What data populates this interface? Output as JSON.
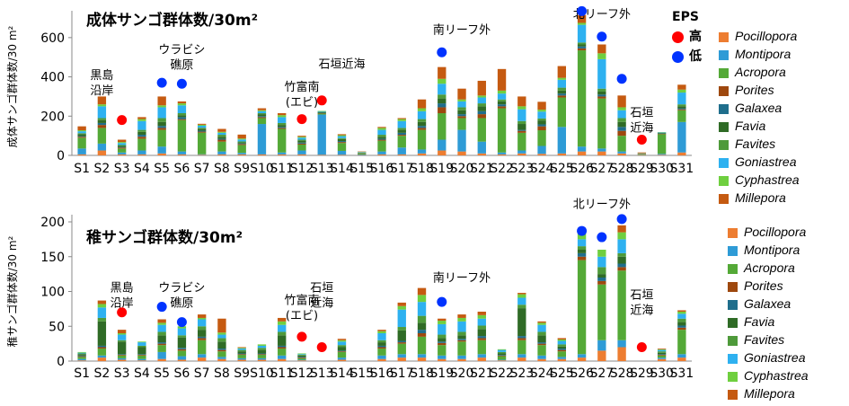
{
  "legend_labels": [
    "Pocillopora",
    "Montipora",
    "Acropora",
    "Porites",
    "Galaxea",
    "Favia",
    "Favites",
    "Goniastrea",
    "Cyphastrea",
    "Millepora"
  ],
  "series_colors": [
    "#ED7D31",
    "#2E9BD6",
    "#54A937",
    "#9E480E",
    "#1F6E8C",
    "#2F6B26",
    "#4E9A3A",
    "#2EB1F0",
    "#6FCF3F",
    "#C55A11"
  ],
  "eps_legend": {
    "title": "EPS",
    "high": "高",
    "low": "低",
    "high_color": "#FF0000",
    "low_color": "#0033FF"
  },
  "chart_data": [
    {
      "type": "bar",
      "title": "成体サンゴ群体数/30m²",
      "ylabel": "成体サンゴ群体数/30 m²",
      "ylim": [
        0,
        700
      ],
      "yticks": [
        0,
        200,
        400,
        600
      ],
      "categories": [
        "S1",
        "S2",
        "S3",
        "S4",
        "S5",
        "S6",
        "S7",
        "S8",
        "S9",
        "S10",
        "S11",
        "S12",
        "S13",
        "S14",
        "S15",
        "S16",
        "S17",
        "S18",
        "S19",
        "S20",
        "S21",
        "S22",
        "S23",
        "S24",
        "S25",
        "S26",
        "S27",
        "S28",
        "S29",
        "S30",
        "S31"
      ],
      "series": [
        {
          "name": "Pocillopora",
          "values": [
            5,
            25,
            5,
            5,
            10,
            5,
            3,
            5,
            5,
            5,
            5,
            5,
            3,
            3,
            2,
            5,
            5,
            10,
            25,
            20,
            10,
            5,
            10,
            8,
            10,
            20,
            20,
            10,
            2,
            3,
            15
          ]
        },
        {
          "name": "Montipora",
          "values": [
            30,
            35,
            10,
            20,
            35,
            15,
            3,
            15,
            8,
            155,
            10,
            20,
            205,
            20,
            3,
            15,
            35,
            20,
            55,
            110,
            60,
            10,
            15,
            40,
            135,
            25,
            15,
            10,
            1,
            5,
            155
          ]
        },
        {
          "name": "Acropora",
          "values": [
            55,
            80,
            20,
            60,
            85,
            160,
            110,
            50,
            40,
            30,
            120,
            30,
            5,
            40,
            5,
            55,
            60,
            100,
            135,
            60,
            120,
            225,
            90,
            80,
            150,
            490,
            255,
            80,
            2,
            100,
            60
          ]
        },
        {
          "name": "Porites",
          "values": [
            5,
            15,
            5,
            10,
            10,
            5,
            5,
            10,
            5,
            5,
            5,
            5,
            2,
            5,
            1,
            5,
            5,
            10,
            30,
            10,
            20,
            10,
            10,
            20,
            10,
            10,
            10,
            25,
            1,
            2,
            5
          ]
        },
        {
          "name": "Galaxea",
          "values": [
            3,
            10,
            3,
            10,
            10,
            10,
            5,
            5,
            3,
            5,
            5,
            5,
            2,
            5,
            1,
            5,
            10,
            10,
            20,
            10,
            15,
            10,
            5,
            10,
            10,
            10,
            10,
            20,
            1,
            2,
            5
          ]
        },
        {
          "name": "Favia",
          "values": [
            10,
            15,
            5,
            15,
            20,
            10,
            10,
            10,
            5,
            10,
            10,
            10,
            3,
            10,
            2,
            10,
            15,
            20,
            25,
            20,
            25,
            15,
            30,
            20,
            15,
            10,
            15,
            25,
            1,
            2,
            10
          ]
        },
        {
          "name": "Favites",
          "values": [
            5,
            10,
            5,
            10,
            20,
            10,
            5,
            10,
            5,
            5,
            10,
            5,
            2,
            5,
            1,
            10,
            10,
            15,
            20,
            15,
            15,
            10,
            15,
            10,
            15,
            10,
            15,
            20,
            1,
            2,
            10
          ]
        },
        {
          "name": "Goniastrea",
          "values": [
            10,
            60,
            10,
            45,
            55,
            40,
            10,
            10,
            10,
            10,
            30,
            10,
            3,
            10,
            2,
            25,
            35,
            40,
            55,
            30,
            30,
            30,
            60,
            35,
            40,
            90,
            150,
            40,
            1,
            2,
            60
          ]
        },
        {
          "name": "Cyphastrea",
          "values": [
            5,
            10,
            5,
            10,
            10,
            10,
            5,
            5,
            5,
            5,
            10,
            5,
            2,
            5,
            1,
            10,
            10,
            15,
            25,
            10,
            10,
            15,
            15,
            10,
            10,
            10,
            30,
            15,
            1,
            1,
            15
          ]
        },
        {
          "name": "Millepora",
          "values": [
            20,
            40,
            12,
            10,
            45,
            10,
            5,
            15,
            20,
            10,
            10,
            5,
            0,
            5,
            2,
            5,
            5,
            45,
            60,
            55,
            75,
            110,
            50,
            40,
            60,
            40,
            45,
            60,
            4,
            0,
            25
          ]
        }
      ],
      "annotations": [
        {
          "text": "黒島\n沿岸",
          "x": "S2",
          "y": 390
        },
        {
          "text": "ウラビシ\n礁原",
          "x": "S6",
          "y": 520
        },
        {
          "text": "竹富南\n(エビ)",
          "x": "S12",
          "y": 330
        },
        {
          "text": "石垣近海",
          "x": "S14",
          "y": 445
        },
        {
          "text": "南リーフ外",
          "x": "S20",
          "y": 620
        },
        {
          "text": "北リーフ外",
          "x": "S27",
          "y": 700
        },
        {
          "text": "石垣\n近海",
          "x": "S29",
          "y": 200
        }
      ],
      "eps_markers": [
        {
          "x": "S3",
          "y": 180,
          "level": "high"
        },
        {
          "x": "S5",
          "y": 370,
          "level": "low"
        },
        {
          "x": "S6",
          "y": 365,
          "level": "low"
        },
        {
          "x": "S12",
          "y": 185,
          "level": "high"
        },
        {
          "x": "S13",
          "y": 280,
          "level": "high"
        },
        {
          "x": "S19",
          "y": 525,
          "level": "low"
        },
        {
          "x": "S26",
          "y": 735,
          "level": "low"
        },
        {
          "x": "S27",
          "y": 605,
          "level": "low"
        },
        {
          "x": "S28",
          "y": 390,
          "level": "low"
        },
        {
          "x": "S29",
          "y": 80,
          "level": "high"
        }
      ]
    },
    {
      "type": "bar",
      "title": "稚サンゴ群体数/30m²",
      "ylabel": "稚サンゴ群体数/30 m²",
      "ylim": [
        0,
        200
      ],
      "yticks": [
        0,
        50,
        100,
        150,
        200
      ],
      "categories": [
        "S1",
        "S2",
        "S3",
        "S4",
        "S5",
        "S6",
        "S7",
        "S8",
        "S9",
        "S10",
        "S11",
        "S12",
        "S13",
        "S14",
        "S15",
        "S16",
        "S17",
        "S18",
        "S19",
        "S20",
        "S21",
        "S22",
        "S23",
        "S24",
        "S25",
        "S26",
        "S27",
        "S28",
        "S29",
        "S30",
        "S31"
      ],
      "series": [
        {
          "name": "Pocillopora",
          "values": [
            1,
            5,
            2,
            1,
            3,
            2,
            5,
            3,
            2,
            2,
            3,
            1,
            0,
            2,
            0,
            3,
            5,
            5,
            3,
            3,
            5,
            1,
            5,
            3,
            3,
            5,
            15,
            20,
            0,
            3,
            5
          ]
        },
        {
          "name": "Montipora",
          "values": [
            2,
            3,
            2,
            2,
            10,
            5,
            5,
            3,
            2,
            2,
            5,
            1,
            0,
            3,
            0,
            5,
            5,
            5,
            5,
            5,
            5,
            1,
            5,
            5,
            3,
            5,
            15,
            10,
            0,
            2,
            5
          ]
        },
        {
          "name": "Acropora",
          "values": [
            3,
            10,
            4,
            5,
            10,
            8,
            20,
            8,
            5,
            5,
            10,
            2,
            0,
            8,
            0,
            10,
            15,
            25,
            15,
            20,
            20,
            5,
            20,
            15,
            8,
            135,
            80,
            100,
            0,
            3,
            35
          ]
        },
        {
          "name": "Porites",
          "values": [
            1,
            2,
            1,
            1,
            2,
            2,
            3,
            2,
            1,
            1,
            2,
            1,
            0,
            1,
            0,
            2,
            2,
            5,
            3,
            2,
            3,
            1,
            3,
            2,
            2,
            5,
            5,
            5,
            0,
            1,
            3
          ]
        },
        {
          "name": "Galaxea",
          "values": [
            1,
            2,
            1,
            1,
            2,
            2,
            2,
            2,
            1,
            1,
            2,
            1,
            0,
            1,
            0,
            2,
            2,
            5,
            2,
            2,
            3,
            1,
            3,
            2,
            2,
            5,
            5,
            5,
            0,
            1,
            3
          ]
        },
        {
          "name": "Favia",
          "values": [
            2,
            35,
            18,
            10,
            10,
            15,
            10,
            10,
            3,
            5,
            15,
            2,
            0,
            5,
            0,
            5,
            15,
            10,
            5,
            5,
            10,
            2,
            40,
            10,
            3,
            5,
            5,
            10,
            0,
            2,
            5
          ]
        },
        {
          "name": "Favites",
          "values": [
            1,
            5,
            2,
            2,
            5,
            3,
            5,
            5,
            2,
            3,
            5,
            1,
            0,
            3,
            0,
            3,
            5,
            10,
            5,
            5,
            5,
            2,
            5,
            5,
            3,
            5,
            10,
            5,
            0,
            2,
            5
          ]
        },
        {
          "name": "Goniastrea",
          "values": [
            1,
            15,
            8,
            5,
            10,
            10,
            10,
            5,
            2,
            3,
            10,
            1,
            0,
            5,
            0,
            10,
            25,
            20,
            15,
            15,
            10,
            3,
            10,
            10,
            5,
            10,
            15,
            20,
            0,
            2,
            7
          ]
        },
        {
          "name": "Cyphastrea",
          "values": [
            1,
            5,
            2,
            1,
            3,
            3,
            2,
            3,
            1,
            2,
            5,
            1,
            0,
            2,
            0,
            3,
            5,
            10,
            5,
            5,
            5,
            1,
            5,
            3,
            2,
            10,
            10,
            10,
            0,
            1,
            3
          ]
        },
        {
          "name": "Millepora",
          "values": [
            0,
            5,
            5,
            0,
            5,
            0,
            5,
            20,
            1,
            0,
            5,
            0,
            0,
            2,
            0,
            2,
            5,
            10,
            3,
            5,
            5,
            0,
            2,
            2,
            2,
            0,
            0,
            10,
            0,
            1,
            2
          ]
        }
      ],
      "annotations": [
        {
          "text": "黒島\n沿岸",
          "x": "S3",
          "y": 100
        },
        {
          "text": "ウラビシ\n礁原",
          "x": "S6",
          "y": 100
        },
        {
          "text": "竹富南\n(エビ)",
          "x": "S12",
          "y": 82
        },
        {
          "text": "石垣\n近海",
          "x": "S13",
          "y": 100
        },
        {
          "text": "南リーフ外",
          "x": "S20",
          "y": 114
        },
        {
          "text": "北リーフ外",
          "x": "S27",
          "y": 220
        },
        {
          "text": "石垣\n近海",
          "x": "S29",
          "y": 90
        }
      ],
      "eps_markers": [
        {
          "x": "S3",
          "y": 70,
          "level": "high"
        },
        {
          "x": "S5",
          "y": 78,
          "level": "low"
        },
        {
          "x": "S6",
          "y": 56,
          "level": "low"
        },
        {
          "x": "S12",
          "y": 35,
          "level": "high"
        },
        {
          "x": "S13",
          "y": 20,
          "level": "high"
        },
        {
          "x": "S19",
          "y": 85,
          "level": "low"
        },
        {
          "x": "S26",
          "y": 187,
          "level": "low"
        },
        {
          "x": "S27",
          "y": 178,
          "level": "low"
        },
        {
          "x": "S28",
          "y": 204,
          "level": "low"
        },
        {
          "x": "S29",
          "y": 20,
          "level": "high"
        }
      ]
    }
  ]
}
